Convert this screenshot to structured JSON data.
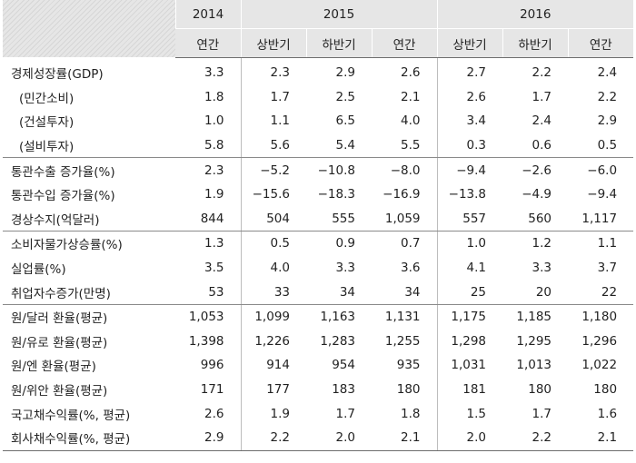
{
  "header": {
    "years": [
      "2014",
      "2015",
      "2016"
    ],
    "subheaders": [
      "연간",
      "상반기",
      "하반기",
      "연간",
      "상반기",
      "하반기",
      "연간"
    ]
  },
  "rows": [
    {
      "label": "경제성장률(GDP)",
      "values": [
        "3.3",
        "2.3",
        "2.9",
        "2.6",
        "2.7",
        "2.2",
        "2.4"
      ]
    },
    {
      "label": "(민간소비)",
      "values": [
        "1.8",
        "1.7",
        "2.5",
        "2.1",
        "2.6",
        "1.7",
        "2.2"
      ]
    },
    {
      "label": "(건설투자)",
      "values": [
        "1.0",
        "1.1",
        "6.5",
        "4.0",
        "3.4",
        "2.4",
        "2.9"
      ]
    },
    {
      "label": "(설비투자)",
      "values": [
        "5.8",
        "5.6",
        "5.4",
        "5.5",
        "0.3",
        "0.6",
        "0.5"
      ]
    },
    {
      "label": "통관수출 증가율(%)",
      "values": [
        "2.3",
        "−5.2",
        "−10.8",
        "−8.0",
        "−9.4",
        "−2.6",
        "−6.0"
      ]
    },
    {
      "label": "통관수입 증가율(%)",
      "values": [
        "1.9",
        "−15.6",
        "−18.3",
        "−16.9",
        "−13.8",
        "−4.9",
        "−9.4"
      ]
    },
    {
      "label": "경상수지(억달러)",
      "values": [
        "844",
        "504",
        "555",
        "1,059",
        "557",
        "560",
        "1,117"
      ]
    },
    {
      "label": "소비자물가상승률(%)",
      "values": [
        "1.3",
        "0.5",
        "0.9",
        "0.7",
        "1.0",
        "1.2",
        "1.1"
      ]
    },
    {
      "label": "실업률(%)",
      "values": [
        "3.5",
        "4.0",
        "3.3",
        "3.6",
        "4.1",
        "3.3",
        "3.7"
      ]
    },
    {
      "label": "취업자수증가(만명)",
      "values": [
        "53",
        "33",
        "34",
        "34",
        "25",
        "20",
        "22"
      ]
    },
    {
      "label": "원/달러 환율(평균)",
      "values": [
        "1,053",
        "1,099",
        "1,163",
        "1,131",
        "1,175",
        "1,185",
        "1,180"
      ]
    },
    {
      "label": "원/유로 환율(평균)",
      "values": [
        "1,398",
        "1,226",
        "1,283",
        "1,255",
        "1,298",
        "1,295",
        "1,296"
      ]
    },
    {
      "label": "원/엔 환율(평균)",
      "values": [
        "996",
        "914",
        "954",
        "935",
        "1,031",
        "1,013",
        "1,022"
      ]
    },
    {
      "label": "원/위안 환율(평균)",
      "values": [
        "171",
        "177",
        "183",
        "180",
        "181",
        "180",
        "180"
      ]
    },
    {
      "label": "국고채수익률(%, 평균)",
      "values": [
        "2.6",
        "1.9",
        "1.7",
        "1.8",
        "1.5",
        "1.7",
        "1.6"
      ]
    },
    {
      "label": "회사채수익률(%, 평균)",
      "values": [
        "2.9",
        "2.2",
        "2.0",
        "2.1",
        "2.0",
        "2.2",
        "2.1"
      ]
    }
  ]
}
